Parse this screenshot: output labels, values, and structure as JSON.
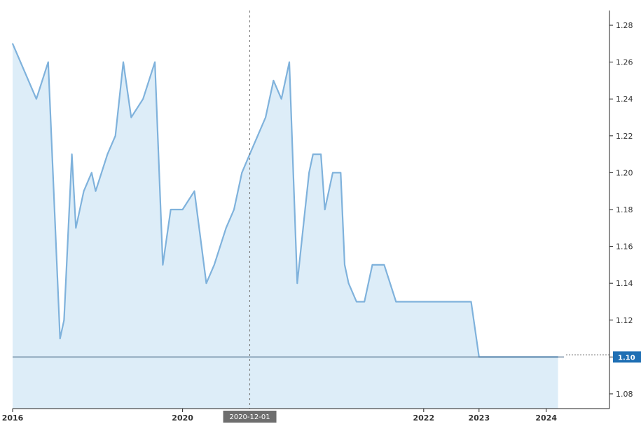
{
  "chart_data": {
    "type": "area",
    "colors": {
      "line": "#7fb2dc",
      "fill": "#d9ebf7",
      "current_badge": "#1f6fb4",
      "cursor_badge": "#6e6e6e"
    },
    "x": [
      "2016-01",
      "2016-07",
      "2016-10",
      "2017-01",
      "2017-02",
      "2017-04",
      "2017-05",
      "2017-07",
      "2017-09",
      "2017-10",
      "2018-01",
      "2018-03",
      "2018-05",
      "2018-07",
      "2018-10",
      "2019-01",
      "2019-03",
      "2019-05",
      "2019-08",
      "2019-11",
      "2020-02",
      "2020-04",
      "2020-07",
      "2020-09",
      "2020-11",
      "2021-01",
      "2021-03",
      "2021-05",
      "2021-07",
      "2021-09",
      "2021-11",
      "2022-01",
      "2022-03",
      "2022-04",
      "2022-05",
      "2022-07",
      "2022-08",
      "2022-10",
      "2022-12",
      "2023-01",
      "2023-02",
      "2023-04",
      "2023-06",
      "2023-08",
      "2023-11",
      "2024-02",
      "2024-04",
      "2024-06",
      "2024-09",
      "2024-12",
      "2025-01",
      "2025-03",
      "2025-06",
      "2025-09",
      "2025-11",
      "2026-01",
      "2026-02",
      "2026-05",
      "2026-10",
      "2026-11",
      "2027-01",
      "2027-04",
      "2027-07"
    ],
    "values": [
      1.27,
      1.24,
      1.26,
      1.11,
      1.12,
      1.21,
      1.17,
      1.19,
      1.2,
      1.19,
      1.21,
      1.22,
      1.26,
      1.23,
      1.24,
      1.26,
      1.15,
      1.18,
      1.18,
      1.19,
      1.14,
      1.15,
      1.17,
      1.18,
      1.2,
      1.21,
      1.22,
      1.23,
      1.25,
      1.24,
      1.26,
      1.14,
      1.18,
      1.2,
      1.21,
      1.21,
      1.18,
      1.2,
      1.2,
      1.15,
      1.14,
      1.13,
      1.13,
      1.15,
      1.15,
      1.13,
      1.13,
      1.13,
      1.13,
      1.13,
      1.13,
      1.13,
      1.13,
      1.13,
      1.1,
      1.1,
      1.1,
      1.1,
      1.1,
      1.1,
      1.1,
      1.1,
      1.1
    ],
    "x_tick_labels": [
      {
        "label": "2016",
        "x": "2016-01"
      },
      {
        "label": "2020",
        "x": "2019-08"
      },
      {
        "label": "2022",
        "x": "2024-09"
      },
      {
        "label": "2023",
        "x": "2025-11"
      },
      {
        "label": "2024",
        "x": "2027-04"
      }
    ],
    "y_ticks": [
      1.08,
      1.1,
      1.12,
      1.14,
      1.16,
      1.18,
      1.2,
      1.22,
      1.24,
      1.26,
      1.28
    ],
    "y_tick_labels": [
      "1.08",
      "",
      "1.12",
      "1.14",
      "1.16",
      "1.18",
      "1.20",
      "1.22",
      "1.24",
      "1.26",
      "1.28"
    ],
    "ylim": [
      1.072,
      1.288
    ],
    "xlim": [
      "2016-01",
      "2028-08"
    ],
    "current_value": 1.1,
    "current_value_label": "1.10",
    "cursor_x": "2021-01",
    "cursor_label": "2020-12-01",
    "title": "",
    "xlabel": "",
    "ylabel": "",
    "grid": false,
    "legend": "none"
  }
}
